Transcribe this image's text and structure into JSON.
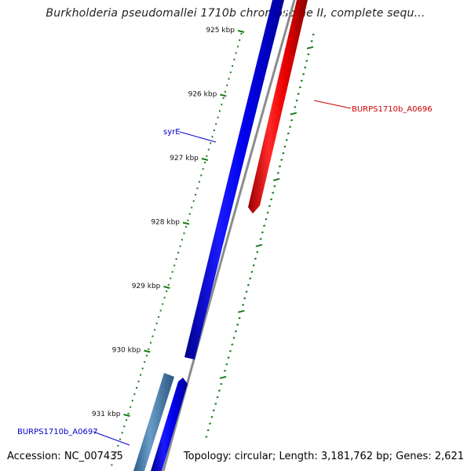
{
  "title": "Burkholderia pseudomallei 1710b chromosome II, complete sequ...",
  "footer": {
    "accession": "Accession: NC_007435",
    "summary": "Topology: circular; Length: 3,181,762 bp; Genes: 2,621"
  },
  "ticks": [
    {
      "label": "925 kbp",
      "pos": 925
    },
    {
      "label": "926 kbp",
      "pos": 926
    },
    {
      "label": "927 kbp",
      "pos": 927
    },
    {
      "label": "928 kbp",
      "pos": 928
    },
    {
      "label": "929 kbp",
      "pos": 929
    },
    {
      "label": "930 kbp",
      "pos": 930
    },
    {
      "label": "931 kbp",
      "pos": 931
    }
  ],
  "genes": [
    {
      "name": "syrE",
      "strand": "forward",
      "color": "#0000ee"
    },
    {
      "name": "BURPS1710b_A0696",
      "strand": "reverse",
      "color": "#ee0000"
    },
    {
      "name": "BURPS1710b_A0697",
      "strand": "forward",
      "color": "#0000ee"
    }
  ],
  "colors": {
    "forward_gene": "#0000ee",
    "reverse_gene": "#ee0000",
    "backbone": "#8c8c8c",
    "tick": "#1a7a1a",
    "other_feature": "#4a7fb0"
  }
}
